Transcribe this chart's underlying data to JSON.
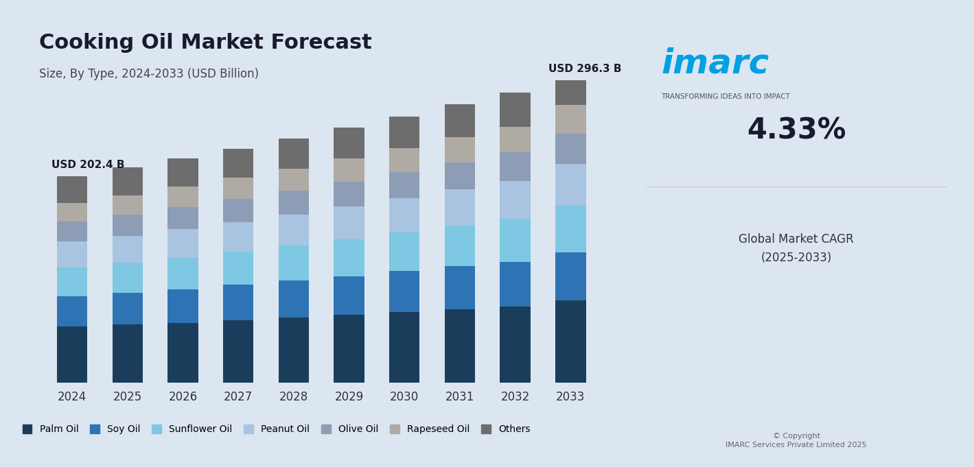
{
  "title": "Cooking Oil Market Forecast",
  "subtitle": "Size, By Type, 2024-2033 (USD Billion)",
  "years": [
    2024,
    2025,
    2026,
    2027,
    2028,
    2029,
    2030,
    2031,
    2032,
    2033
  ],
  "label_start": "USD 202.4 B",
  "label_end": "USD 296.3 B",
  "series": {
    "Palm Oil": [
      55,
      57,
      59,
      62,
      65,
      68,
      71,
      74,
      77,
      81
    ],
    "Soy Oil": [
      30,
      31,
      33,
      35,
      37,
      39,
      41,
      43,
      45,
      47
    ],
    "Sunflower Oil": [
      28,
      29,
      31,
      33,
      35,
      37,
      39,
      41,
      43,
      46
    ],
    "Peanut Oil": [
      25,
      26,
      28,
      29,
      31,
      33,
      34,
      36,
      38,
      40
    ],
    "Olive Oil": [
      20,
      21,
      22,
      23,
      24,
      25,
      26,
      27,
      29,
      30
    ],
    "Rapeseed Oil": [
      18,
      19,
      20,
      21,
      22,
      23,
      24,
      25,
      26,
      28
    ],
    "Others": [
      26,
      27,
      28,
      29,
      30,
      31,
      32,
      33,
      34,
      24
    ]
  },
  "colors": {
    "Palm Oil": "#1a3d5c",
    "Soy Oil": "#2e74b5",
    "Sunflower Oil": "#7ec8e3",
    "Peanut Oil": "#a8c4e0",
    "Olive Oil": "#8d9db6",
    "Rapeseed Oil": "#b0aaa4",
    "Others": "#6d6d6d"
  },
  "bg_color": "#dce6f1",
  "plot_bg_color": "#dce6f1",
  "bar_width": 0.55,
  "ylim": [
    0,
    320
  ],
  "target_totals": [
    202.4,
    211.0,
    220.0,
    229.5,
    239.5,
    250.0,
    261.0,
    272.5,
    284.0,
    296.3
  ],
  "cagr_text": "4.33%",
  "cagr_label": "Global Market CAGR\n(2025-2033)",
  "imarc_label": "imarc",
  "imarc_tagline": "TRANSFORMING IDEAS INTO IMPACT",
  "copyright": "© Copyright\nIMARC Services Private Limited 2025"
}
